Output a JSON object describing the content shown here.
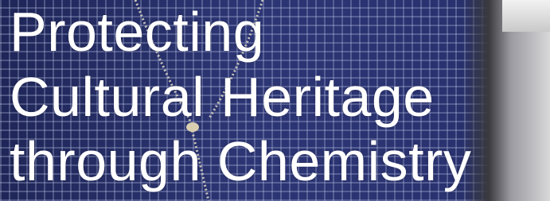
{
  "headline": {
    "lines": [
      "Protecting",
      "Cultural Heritage",
      "through Chemistry"
    ]
  }
}
